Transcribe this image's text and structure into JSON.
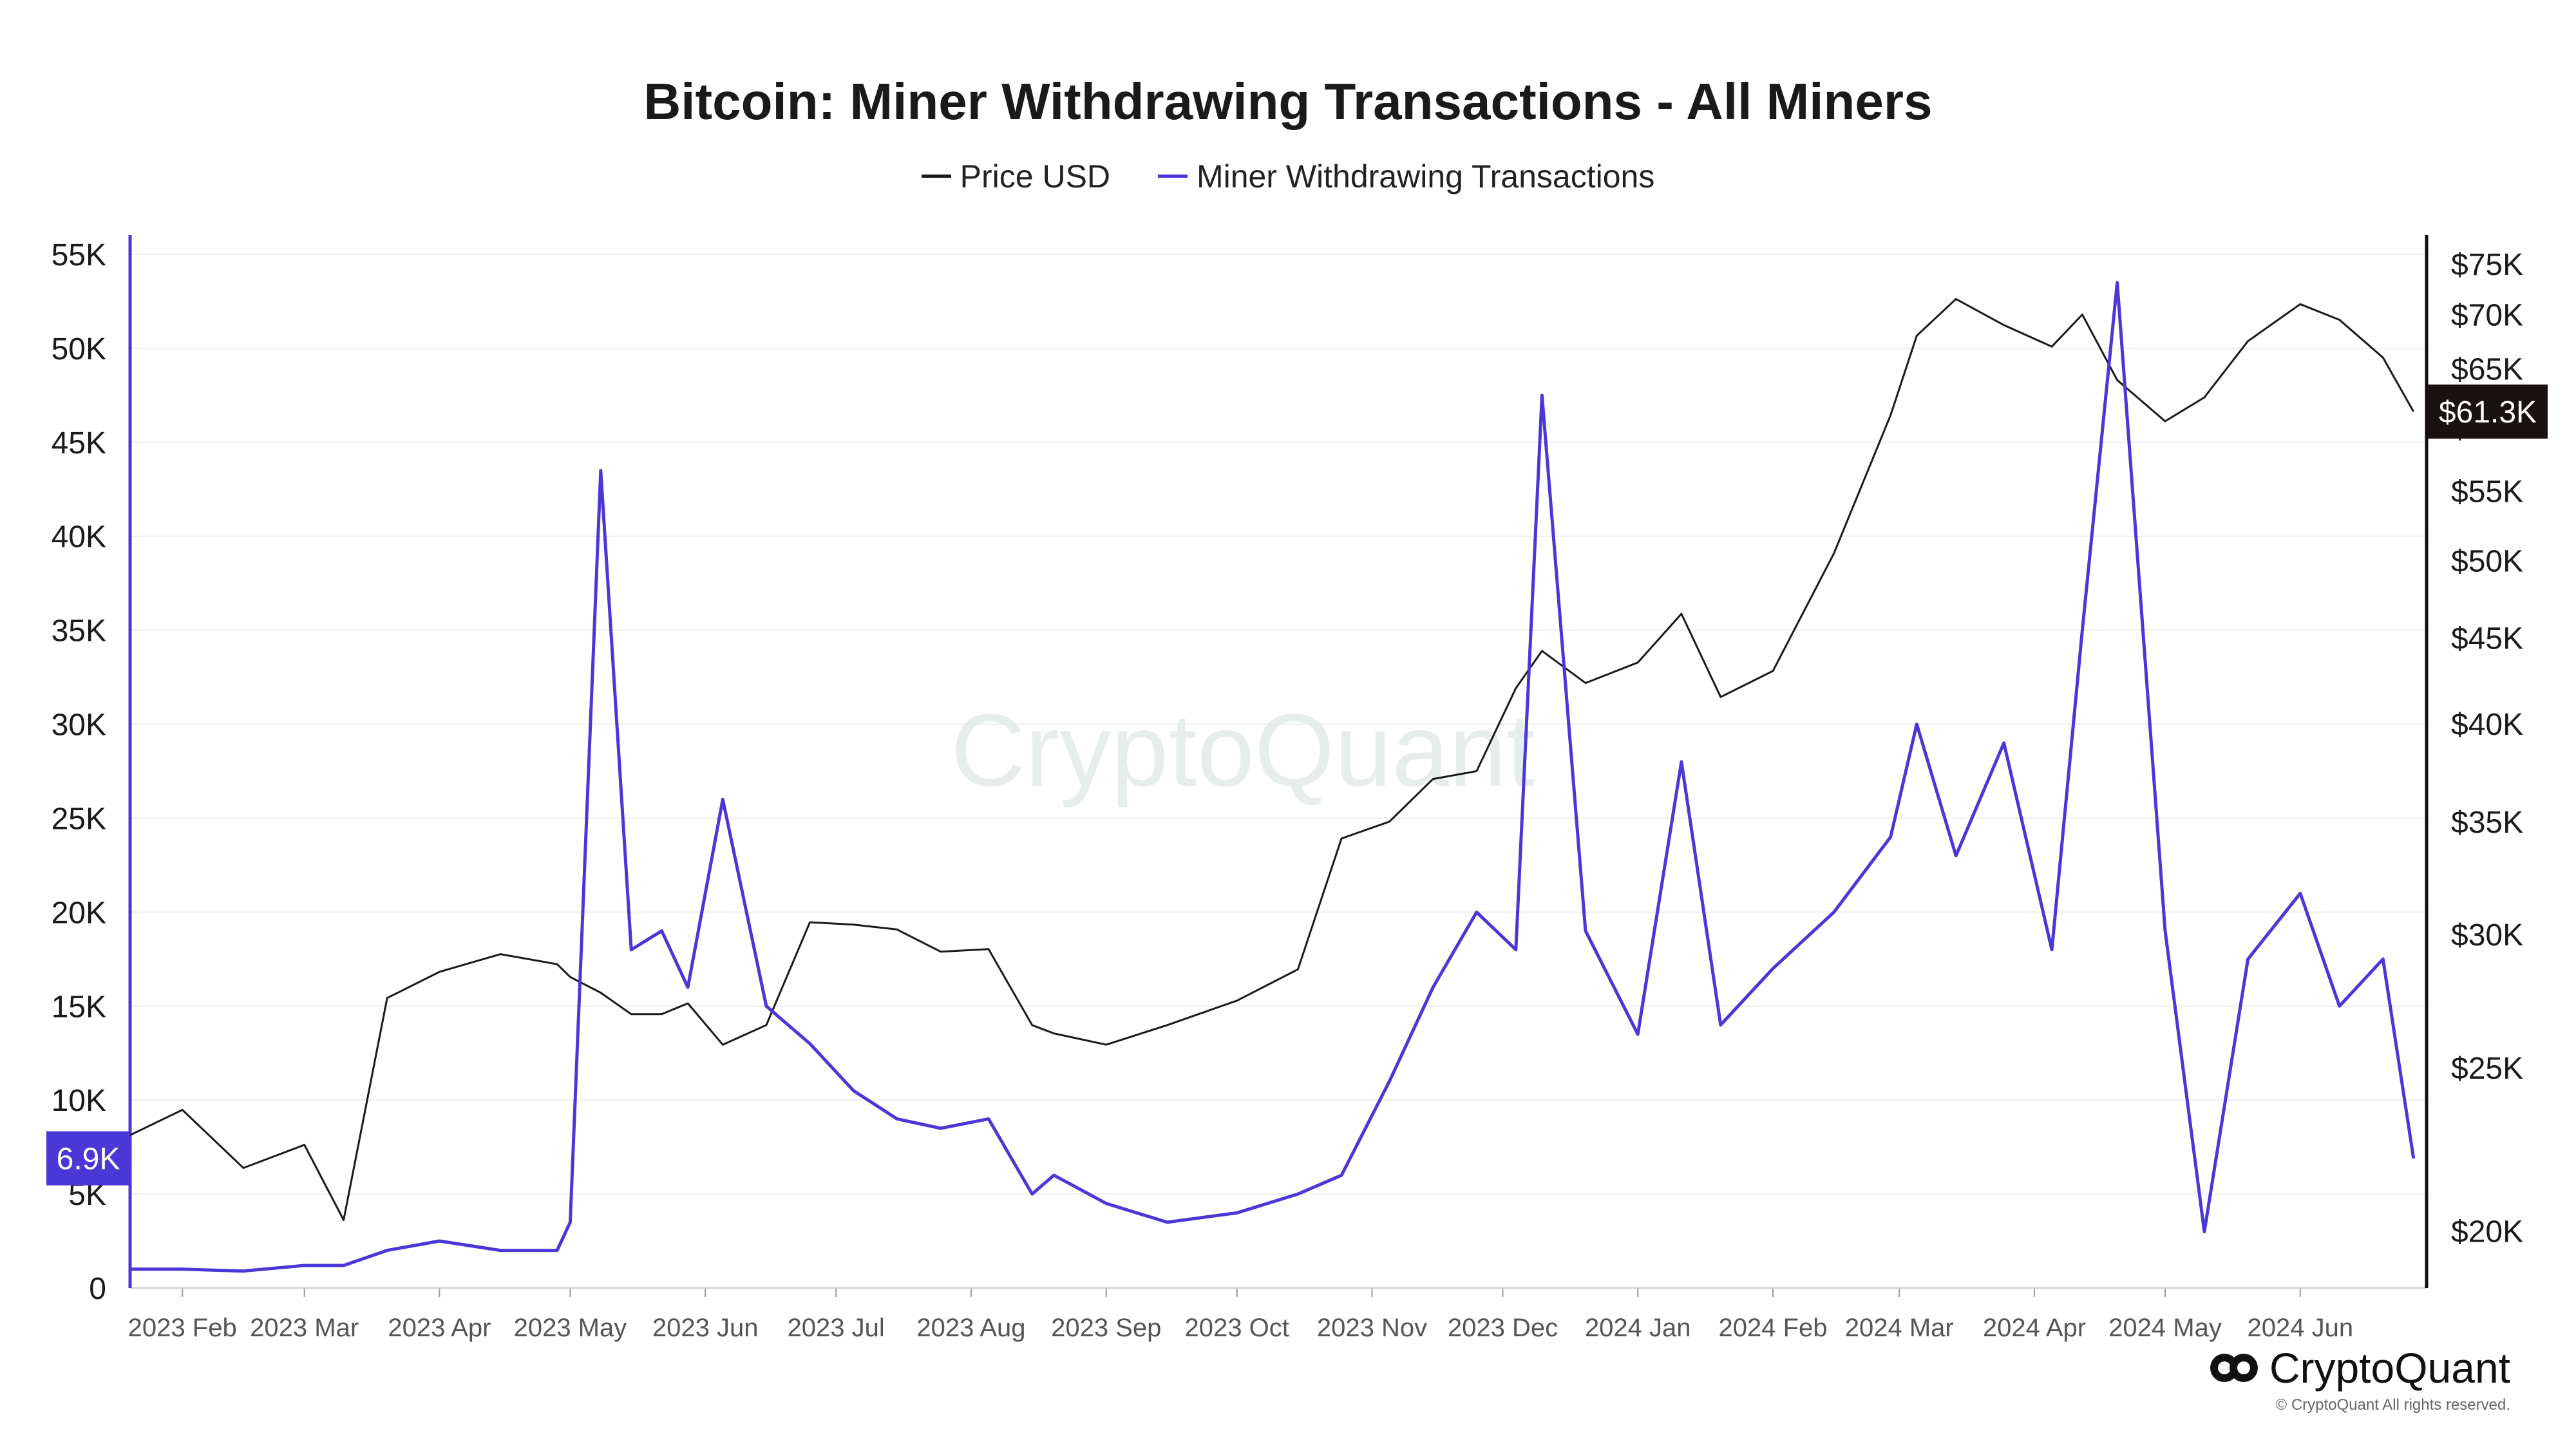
{
  "chart_data": {
    "type": "line",
    "title": "Bitcoin: Miner Withdrawing Transactions - All Miners",
    "watermark": "CryptoQuant",
    "x": [
      "2023-01-20",
      "2023-02-01",
      "2023-02-15",
      "2023-03-01",
      "2023-03-10",
      "2023-03-20",
      "2023-04-01",
      "2023-04-15",
      "2023-04-28",
      "2023-05-01",
      "2023-05-08",
      "2023-05-15",
      "2023-05-22",
      "2023-05-28",
      "2023-06-05",
      "2023-06-15",
      "2023-06-25",
      "2023-07-05",
      "2023-07-15",
      "2023-07-25",
      "2023-08-05",
      "2023-08-15",
      "2023-08-20",
      "2023-09-01",
      "2023-09-15",
      "2023-10-01",
      "2023-10-15",
      "2023-10-25",
      "2023-11-05",
      "2023-11-15",
      "2023-11-25",
      "2023-12-04",
      "2023-12-10",
      "2023-12-20",
      "2024-01-01",
      "2024-01-11",
      "2024-01-20",
      "2024-02-01",
      "2024-02-15",
      "2024-02-28",
      "2024-03-05",
      "2024-03-14",
      "2024-03-25",
      "2024-04-05",
      "2024-04-12",
      "2024-04-20",
      "2024-05-01",
      "2024-05-10",
      "2024-05-20",
      "2024-06-01",
      "2024-06-10",
      "2024-06-20",
      "2024-06-27"
    ],
    "series": [
      {
        "name": "Price USD",
        "axis": "right",
        "color": "#1a1a1a",
        "values": [
          22800,
          23600,
          21800,
          22500,
          20300,
          27500,
          28500,
          29200,
          28800,
          28300,
          27700,
          26900,
          26900,
          27300,
          25800,
          26500,
          30500,
          30400,
          30200,
          29300,
          29400,
          26500,
          26200,
          25800,
          26500,
          27400,
          28600,
          34200,
          35000,
          37100,
          37500,
          42000,
          44200,
          42300,
          43500,
          46500,
          41500,
          43000,
          50500,
          61000,
          68000,
          71500,
          69000,
          67000,
          70000,
          64000,
          60500,
          62500,
          67500,
          71000,
          69500,
          66000,
          61300
        ]
      },
      {
        "name": "Miner Withdrawing Transactions",
        "axis": "left",
        "color": "#4b36d6",
        "values": [
          1000,
          1000,
          900,
          1200,
          1200,
          2000,
          2500,
          2000,
          2000,
          3500,
          43500,
          18000,
          19000,
          16000,
          26000,
          15000,
          13000,
          10500,
          9000,
          8500,
          9000,
          5000,
          6000,
          4500,
          3500,
          4000,
          5000,
          6000,
          11000,
          16000,
          20000,
          18000,
          47500,
          19000,
          13500,
          28000,
          14000,
          17000,
          20000,
          24000,
          30000,
          23000,
          29000,
          18000,
          35000,
          53500,
          19000,
          3000,
          17500,
          21000,
          15000,
          17500,
          6900
        ]
      }
    ],
    "y_left": {
      "ticks": [
        "0",
        "5K",
        "10K",
        "15K",
        "20K",
        "25K",
        "30K",
        "35K",
        "40K",
        "45K",
        "50K",
        "55K"
      ],
      "range": [
        0,
        55000
      ]
    },
    "y_right": {
      "scale": "log",
      "ticks": [
        "$20K",
        "$25K",
        "$30K",
        "$35K",
        "$40K",
        "$45K",
        "$50K",
        "$55K",
        "$60K",
        "$65K",
        "$70K",
        "$75K"
      ],
      "range": [
        18500,
        76000
      ]
    },
    "x_ticks": [
      "2023 Feb",
      "2023 Mar",
      "2023 Apr",
      "2023 May",
      "2023 Jun",
      "2023 Jul",
      "2023 Aug",
      "2023 Sep",
      "2023 Oct",
      "2023 Nov",
      "2023 Dec",
      "2024 Jan",
      "2024 Feb",
      "2024 Mar",
      "2024 Apr",
      "2024 May",
      "2024 Jun"
    ],
    "x_tick_dates": [
      "2023-02-01",
      "2023-03-01",
      "2023-04-01",
      "2023-05-01",
      "2023-06-01",
      "2023-07-01",
      "2023-08-01",
      "2023-09-01",
      "2023-10-01",
      "2023-11-01",
      "2023-12-01",
      "2024-01-01",
      "2024-02-01",
      "2024-03-01",
      "2024-04-01",
      "2024-05-01",
      "2024-06-01"
    ],
    "x_range": [
      "2023-01-20",
      "2024-06-30"
    ],
    "last_labels": {
      "left": "6.9K",
      "right": "$61.3K"
    },
    "grid": true,
    "legend_position": "top-center"
  },
  "footer": {
    "brand": "CryptoQuant",
    "copyright": "© CryptoQuant All rights reserved."
  }
}
